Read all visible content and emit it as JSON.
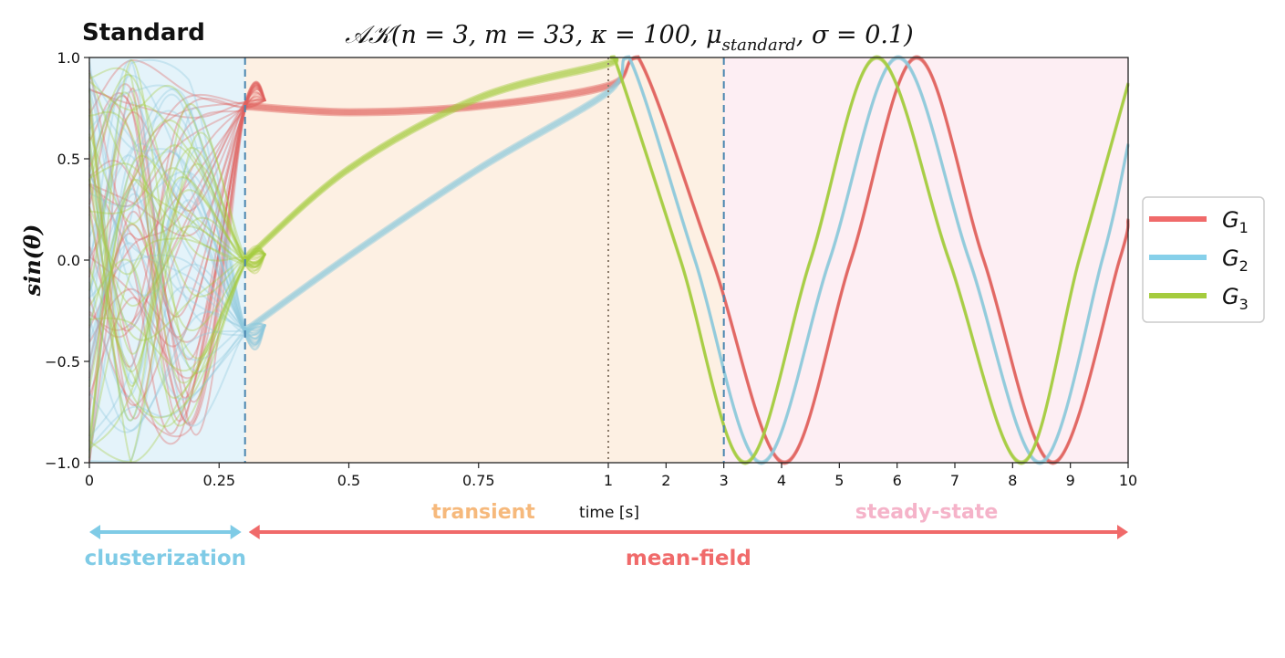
{
  "panel_label": "Standard",
  "chart_data": {
    "type": "line",
    "title": "𝒜𝒦(n = 3, m = 33, κ = 100, μ",
    "title_sub": "standard",
    "title_tail": ", σ = 0.1)",
    "xlabel": "time [s]",
    "ylabel": "sin(θ)",
    "xlim": [
      0,
      10
    ],
    "ylim": [
      -1.0,
      1.0
    ],
    "x_scale": "piecewise: 0–1 expanded, 1–10 compressed",
    "xticks": [
      "0",
      "0.25",
      "0.5",
      "0.75",
      "1",
      "2",
      "3",
      "4",
      "5",
      "6",
      "7",
      "8",
      "9",
      "10"
    ],
    "yticks": [
      "1.0",
      "0.5",
      "0.0",
      "−0.5",
      "−1.0"
    ],
    "grid": false,
    "legend_placement": "right",
    "phases": [
      {
        "label": "clusterization",
        "start": 0,
        "end": 0.3,
        "color": "#7fcbe6",
        "background": "#e4f3fa"
      },
      {
        "label": "transient",
        "start": 0.3,
        "end": 3,
        "color": "#f6b97c",
        "background": "#fdf0e3"
      },
      {
        "label": "steady-state",
        "start": 3,
        "end": 10,
        "color": "#f5b3c9",
        "background": "#fdeef3"
      }
    ],
    "regime_arrows": [
      {
        "label": "clusterization",
        "start": 0,
        "end": 0.3,
        "color": "#7fcbe6"
      },
      {
        "label": "mean-field",
        "start": 0.3,
        "end": 10,
        "color": "#f06a6a"
      }
    ],
    "markers": [
      {
        "x": 0.3,
        "style": "dashed"
      },
      {
        "x": 1,
        "style": "dotted"
      },
      {
        "x": 3,
        "style": "dashed"
      }
    ],
    "series": [
      {
        "name": "G",
        "sub": "1",
        "color": "#e0625e",
        "legend_color": "#f06a6a",
        "points": [
          [
            0.3,
            0.76
          ],
          [
            0.5,
            0.73
          ],
          [
            0.75,
            0.76
          ],
          [
            1,
            0.86
          ],
          [
            1.52,
            1
          ],
          [
            2.8,
            0
          ],
          [
            4.05,
            -1
          ],
          [
            5.2,
            0
          ],
          [
            6.34,
            1
          ],
          [
            7.5,
            0
          ],
          [
            8.7,
            -1
          ],
          [
            9.85,
            0
          ],
          [
            10,
            0.2
          ]
        ]
      },
      {
        "name": "G",
        "sub": "2",
        "color": "#8fc9dc",
        "legend_color": "#86d0ea",
        "points": [
          [
            0.3,
            -0.35
          ],
          [
            0.5,
            0.02
          ],
          [
            0.75,
            0.45
          ],
          [
            1,
            0.83
          ],
          [
            1.36,
            1
          ],
          [
            2.5,
            0
          ],
          [
            3.65,
            -1
          ],
          [
            4.83,
            0
          ],
          [
            6.02,
            1
          ],
          [
            7.25,
            0
          ],
          [
            8.47,
            -1
          ],
          [
            9.55,
            0
          ],
          [
            10,
            0.57
          ]
        ]
      },
      {
        "name": "G",
        "sub": "3",
        "color": "#a5cc3e",
        "legend_color": "#a5cc3e",
        "points": [
          [
            0.3,
            0.0
          ],
          [
            0.5,
            0.45
          ],
          [
            0.75,
            0.8
          ],
          [
            1,
            0.97
          ],
          [
            1.1,
            1
          ],
          [
            2.25,
            0
          ],
          [
            3.37,
            -1
          ],
          [
            4.5,
            0
          ],
          [
            5.65,
            1
          ],
          [
            6.9,
            0
          ],
          [
            8.15,
            -1
          ],
          [
            9.15,
            0
          ],
          [
            10,
            0.87
          ]
        ]
      }
    ]
  }
}
